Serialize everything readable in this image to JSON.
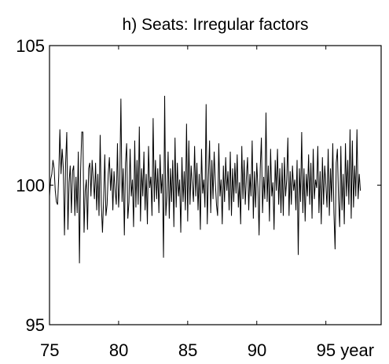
{
  "chart_data": {
    "type": "line",
    "title": "h) Seats: Irregular factors",
    "xlabel": "year",
    "ylabel": "",
    "xlim": [
      75,
      99
    ],
    "ylim": [
      95,
      105
    ],
    "x_ticks": [
      75,
      80,
      85,
      90,
      95
    ],
    "x_tick_labels": [
      "75",
      "80",
      "85",
      "90",
      "95 year"
    ],
    "y_ticks": [
      95,
      100,
      105
    ],
    "y_tick_labels": [
      "95",
      "100",
      "105"
    ],
    "grid": false,
    "line_color": "#000000",
    "series": [
      {
        "x_start": 75,
        "x_step": 0.0833333,
        "values": [
          99.6,
          100.2,
          100.4,
          100.9,
          100.6,
          99.8,
          99.4,
          99.3,
          100.3,
          102.0,
          100.4,
          101.3,
          100.6,
          98.2,
          100.8,
          101.9,
          98.4,
          100.1,
          100.7,
          99.0,
          100.5,
          100.7,
          98.9,
          100.3,
          99.0,
          101.2,
          97.2,
          100.5,
          101.9,
          101.9,
          98.3,
          99.8,
          100.2,
          98.4,
          100.6,
          100.8,
          99.6,
          100.9,
          100.2,
          99.5,
          100.8,
          99.1,
          100.4,
          98.9,
          101.8,
          99.3,
          98.3,
          99.5,
          101.1,
          98.9,
          99.3,
          100.4,
          101.0,
          99.8,
          100.6,
          99.1,
          100.5,
          99.8,
          99.3,
          101.5,
          99.2,
          100.1,
          103.1,
          99.4,
          100.6,
          98.2,
          100.8,
          101.5,
          98.8,
          99.4,
          101.3,
          99.6,
          100.2,
          98.5,
          101.6,
          99.2,
          100.9,
          99.3,
          102.1,
          98.7,
          100.6,
          99.6,
          101.2,
          99.1,
          100.4,
          98.6,
          101.4,
          99.9,
          100.3,
          98.9,
          102.4,
          99.4,
          100.9,
          99.5,
          100.6,
          99.0,
          101.1,
          99.7,
          100.4,
          97.4,
          103.2,
          98.9,
          99.6,
          101.2,
          98.8,
          100.6,
          99.4,
          100.9,
          98.5,
          101.7,
          99.2,
          100.8,
          99.6,
          100.2,
          98.3,
          101.0,
          99.4,
          100.5,
          99.1,
          102.2,
          98.7,
          101.6,
          99.3,
          100.7,
          100.0,
          99.4,
          101.4,
          99.6,
          100.8,
          99.1,
          100.4,
          98.4,
          101.3,
          99.7,
          100.2,
          99.2,
          102.9,
          98.6,
          100.3,
          101.6,
          99.0,
          100.9,
          99.5,
          101.2,
          100.1,
          99.3,
          98.9,
          101.5,
          99.6,
          100.2,
          98.6,
          100.7,
          99.4,
          101.0,
          99.8,
          100.5,
          99.1,
          101.2,
          98.9,
          100.6,
          99.4,
          100.8,
          99.7,
          101.1,
          99.2,
          100.1,
          98.6,
          101.4,
          99.5,
          100.9,
          99.3,
          100.3,
          101.0,
          99.1,
          100.4,
          99.6,
          101.6,
          98.8,
          100.5,
          99.2,
          100.8,
          99.9,
          98.2,
          100.6,
          101.7,
          99.0,
          100.3,
          99.5,
          102.6,
          99.4,
          100.7,
          98.7,
          101.3,
          99.6,
          100.1,
          98.4,
          100.9,
          99.8,
          101.3,
          99.3,
          100.6,
          99.0,
          100.8,
          98.9,
          101.0,
          99.6,
          100.2,
          101.7,
          98.9,
          100.5,
          99.3,
          100.7,
          99.8,
          100.2,
          99.1,
          100.9,
          97.5,
          100.6,
          99.4,
          101.9,
          99.0,
          100.6,
          98.7,
          100.4,
          99.6,
          101.1,
          99.3,
          100.8,
          98.8,
          101.3,
          99.5,
          100.2,
          99.9,
          101.4,
          99.0,
          100.5,
          98.6,
          101.0,
          99.3,
          100.7,
          100.0,
          99.2,
          101.3,
          98.9,
          100.6,
          99.4,
          101.5,
          99.0,
          97.7,
          100.8,
          101.3,
          99.5,
          98.5,
          101.4,
          99.1,
          100.4,
          98.6,
          101.5,
          99.6,
          100.9,
          99.3,
          102.0,
          98.8,
          101.6,
          99.2,
          100.7,
          99.6,
          102.0,
          99.5,
          100.4,
          99.8
        ]
      }
    ]
  }
}
